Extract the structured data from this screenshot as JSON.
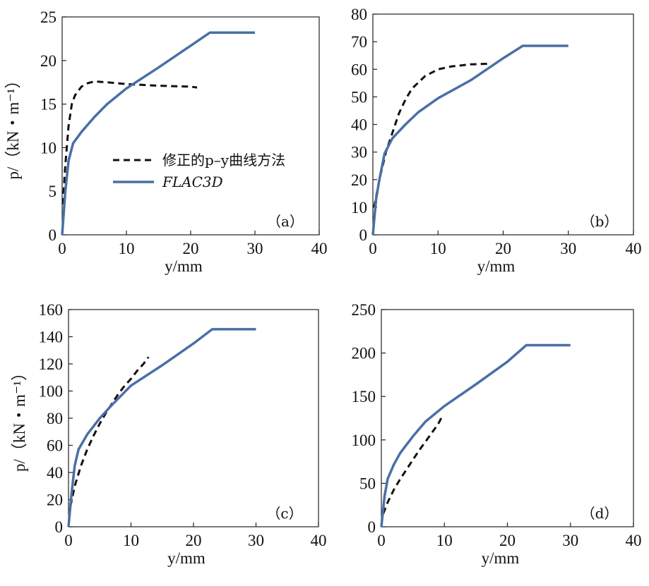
{
  "figure": {
    "legend": {
      "dashed_label": "修正的p–y曲线方法",
      "solid_label": "FLAC3D"
    },
    "colors": {
      "flac": "#4a6fa5",
      "modified": "#111111"
    },
    "axis_titles": {
      "y": "p/（kN・m⁻¹）",
      "x": "y/mm"
    }
  },
  "chart_data": [
    {
      "type": "line",
      "tag": "（a）",
      "xlim": [
        0,
        40
      ],
      "ylim": [
        0,
        25
      ],
      "xticks": [
        0,
        10,
        20,
        30,
        40
      ],
      "yticks": [
        0,
        5,
        10,
        15,
        20,
        25
      ],
      "ylabel": "p/（kN・m⁻¹）",
      "xlabel": "y/mm",
      "show_legend": true,
      "series": [
        {
          "name": "修正的p–y曲线方法",
          "style": "dashed",
          "points": [
            [
              0.1,
              3.5
            ],
            [
              0.5,
              8
            ],
            [
              1,
              12.5
            ],
            [
              1.5,
              15
            ],
            [
              2,
              16
            ],
            [
              3,
              17
            ],
            [
              4,
              17.4
            ],
            [
              5,
              17.6
            ],
            [
              7,
              17.5
            ],
            [
              10,
              17.3
            ],
            [
              15,
              17.1
            ],
            [
              20,
              17.0
            ],
            [
              21,
              16.9
            ]
          ]
        },
        {
          "name": "FLAC3D",
          "style": "solid",
          "points": [
            [
              0,
              0
            ],
            [
              0.5,
              5
            ],
            [
              1,
              8.5
            ],
            [
              1.7,
              10.5
            ],
            [
              3,
              11.8
            ],
            [
              5,
              13.5
            ],
            [
              7,
              15
            ],
            [
              10,
              16.8
            ],
            [
              15,
              19.2
            ],
            [
              20,
              21.7
            ],
            [
              23,
              23.2
            ],
            [
              30,
              23.2
            ]
          ]
        }
      ]
    },
    {
      "type": "line",
      "tag": "（b）",
      "xlim": [
        0,
        40
      ],
      "ylim": [
        0,
        80
      ],
      "xticks": [
        0,
        10,
        20,
        30,
        40
      ],
      "yticks": [
        0,
        10,
        20,
        30,
        40,
        50,
        60,
        70,
        80
      ],
      "ylabel": "",
      "xlabel": "y/mm",
      "show_legend": false,
      "series": [
        {
          "name": "修正的p–y曲线方法",
          "style": "dashed",
          "points": [
            [
              0.2,
              10
            ],
            [
              1,
              20
            ],
            [
              2,
              30
            ],
            [
              3,
              37
            ],
            [
              4,
              44
            ],
            [
              5,
              49
            ],
            [
              6,
              53
            ],
            [
              8,
              57.5
            ],
            [
              10,
              60
            ],
            [
              12,
              61
            ],
            [
              15,
              61.8
            ],
            [
              18,
              62
            ]
          ]
        },
        {
          "name": "FLAC3D",
          "style": "solid",
          "points": [
            [
              0,
              0
            ],
            [
              0.5,
              13
            ],
            [
              1,
              20
            ],
            [
              1.8,
              29.5
            ],
            [
              3,
              35
            ],
            [
              5,
              40
            ],
            [
              7,
              44.5
            ],
            [
              10,
              49.5
            ],
            [
              15,
              56
            ],
            [
              20,
              64
            ],
            [
              23,
              68.5
            ],
            [
              30,
              68.5
            ]
          ]
        }
      ]
    },
    {
      "type": "line",
      "tag": "（c）",
      "xlim": [
        0,
        40
      ],
      "ylim": [
        0,
        160
      ],
      "xticks": [
        0,
        10,
        20,
        30,
        40
      ],
      "yticks": [
        0,
        20,
        40,
        60,
        80,
        100,
        120,
        140,
        160
      ],
      "ylabel": "p/（kN・m⁻¹）",
      "xlabel": "y/mm",
      "show_legend": false,
      "series": [
        {
          "name": "修正的p–y曲线方法",
          "style": "dashed",
          "points": [
            [
              0.3,
              15
            ],
            [
              1,
              30
            ],
            [
              2,
              45
            ],
            [
              3,
              57
            ],
            [
              4,
              67
            ],
            [
              5,
              76
            ],
            [
              6,
              84
            ],
            [
              7,
              91
            ],
            [
              8,
              98
            ],
            [
              9,
              104
            ],
            [
              10,
              109
            ],
            [
              11,
              115
            ],
            [
              12,
              120
            ],
            [
              12.8,
              125
            ]
          ]
        },
        {
          "name": "FLAC3D",
          "style": "solid",
          "points": [
            [
              0,
              0
            ],
            [
              0.5,
              25
            ],
            [
              1,
              45
            ],
            [
              1.6,
              57
            ],
            [
              3,
              68
            ],
            [
              5,
              80
            ],
            [
              7,
              90
            ],
            [
              10,
              104
            ],
            [
              15,
              119
            ],
            [
              20,
              135
            ],
            [
              23,
              145.5
            ],
            [
              30,
              145.5
            ]
          ]
        }
      ]
    },
    {
      "type": "line",
      "tag": "（d）",
      "xlim": [
        0,
        40
      ],
      "ylim": [
        0,
        250
      ],
      "xticks": [
        0,
        10,
        20,
        30,
        40
      ],
      "yticks": [
        0,
        50,
        100,
        150,
        200,
        250
      ],
      "ylabel": "",
      "xlabel": "y/mm",
      "show_legend": false,
      "series": [
        {
          "name": "修正的p–y曲线方法",
          "style": "dashed",
          "points": [
            [
              0.3,
              15
            ],
            [
              1,
              28
            ],
            [
              2,
              43
            ],
            [
              3,
              55
            ],
            [
              4,
              66
            ],
            [
              5,
              77
            ],
            [
              6,
              88
            ],
            [
              7,
              98
            ],
            [
              8,
              108
            ],
            [
              9,
              118
            ],
            [
              9.5,
              125
            ]
          ]
        },
        {
          "name": "FLAC3D",
          "style": "solid",
          "points": [
            [
              0,
              0
            ],
            [
              0.5,
              35
            ],
            [
              1,
              55
            ],
            [
              2,
              72
            ],
            [
              3,
              85
            ],
            [
              5,
              104
            ],
            [
              7,
              121
            ],
            [
              10,
              139
            ],
            [
              15,
              164
            ],
            [
              20,
              190
            ],
            [
              23,
              209
            ],
            [
              30,
              209
            ]
          ]
        }
      ]
    }
  ]
}
